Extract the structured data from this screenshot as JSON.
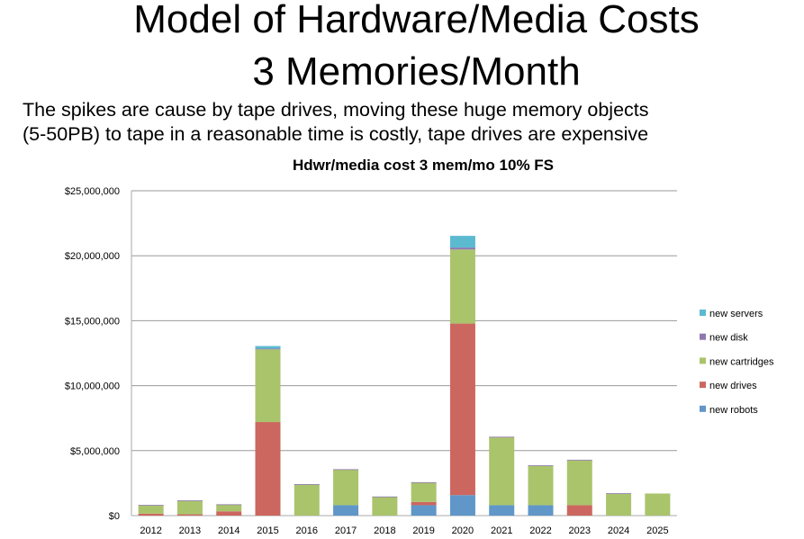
{
  "slide": {
    "title_line1": "Model of Hardware/Media Costs",
    "title_line2": "3 Memories/Month",
    "subtitle_line1": "The spikes are cause by tape drives, moving these huge memory objects",
    "subtitle_line2": "(5-50PB) to tape in a reasonable time is costly, tape drives are expensive"
  },
  "chart_data": {
    "type": "bar",
    "stacked": true,
    "title": "Hdwr/media cost 3 mem/mo 10% FS",
    "xlabel": "",
    "ylabel": "",
    "ylim": [
      0,
      25000000
    ],
    "y_ticks": [
      0,
      5000000,
      10000000,
      15000000,
      20000000,
      25000000
    ],
    "y_tick_labels": [
      "$0",
      "$5,000,000",
      "$10,000,000",
      "$15,000,000",
      "$20,000,000",
      "$25,000,000"
    ],
    "grid": true,
    "legend_position": "right",
    "categories": [
      "2012",
      "2013",
      "2014",
      "2015",
      "2016",
      "2017",
      "2018",
      "2019",
      "2020",
      "2021",
      "2022",
      "2023",
      "2024",
      "2025"
    ],
    "series": [
      {
        "name": "new robots",
        "color": "#6096C8",
        "values": [
          0,
          0,
          0,
          0,
          0,
          800000,
          0,
          800000,
          1580000,
          800000,
          800000,
          0,
          0,
          0
        ]
      },
      {
        "name": "new drives",
        "color": "#CC6760",
        "values": [
          150000,
          100000,
          330000,
          7200000,
          0,
          0,
          0,
          250000,
          13200000,
          0,
          0,
          800000,
          0,
          0
        ]
      },
      {
        "name": "new cartridges",
        "color": "#AAC46C",
        "values": [
          650000,
          1050000,
          520000,
          5600000,
          2400000,
          2750000,
          1450000,
          1500000,
          5700000,
          5250000,
          3050000,
          3450000,
          1700000,
          1700000
        ]
      },
      {
        "name": "new disk",
        "color": "#8E77B0",
        "values": [
          20000,
          20000,
          20000,
          50000,
          20000,
          20000,
          20000,
          20000,
          150000,
          20000,
          20000,
          50000,
          20000,
          0
        ]
      },
      {
        "name": "new servers",
        "color": "#5BBAD0",
        "values": [
          0,
          0,
          0,
          200000,
          0,
          0,
          0,
          0,
          900000,
          0,
          0,
          0,
          0,
          0
        ]
      }
    ]
  }
}
